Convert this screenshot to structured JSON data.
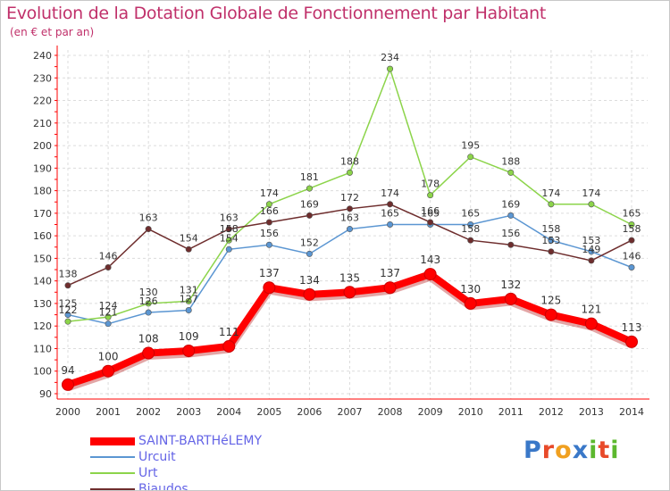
{
  "header": {
    "title": "Evolution de la Dotation Globale de Fonctionnement par Habitant",
    "subtitle": "(en € et par an)"
  },
  "logo": {
    "text": "Proxiti"
  },
  "chart_data": {
    "type": "line",
    "x": [
      2000,
      2001,
      2002,
      2003,
      2004,
      2005,
      2006,
      2007,
      2008,
      2009,
      2010,
      2011,
      2012,
      2013,
      2014
    ],
    "ylim": [
      90,
      240
    ],
    "yticks": [
      90,
      100,
      110,
      120,
      130,
      140,
      150,
      160,
      170,
      180,
      190,
      200,
      210,
      220,
      230,
      240
    ],
    "grid": true,
    "legend": "bottom-left",
    "series": [
      {
        "name": "SAINT-BARTHéLEMY",
        "color": "#ff0000",
        "emphasis": true,
        "values": [
          94,
          100,
          108,
          109,
          111,
          137,
          134,
          135,
          137,
          143,
          130,
          132,
          125,
          121,
          113
        ]
      },
      {
        "name": "Urcuit",
        "color": "#5b96d2",
        "values": [
          125,
          121,
          126,
          127,
          154,
          156,
          152,
          163,
          165,
          165,
          165,
          169,
          158,
          153,
          146
        ]
      },
      {
        "name": "Urt",
        "color": "#8cd44a",
        "values": [
          122,
          124,
          130,
          131,
          158,
          174,
          181,
          188,
          234,
          178,
          195,
          188,
          174,
          174,
          165
        ]
      },
      {
        "name": "Biaudos",
        "color": "#6e2d2d",
        "values": [
          138,
          146,
          163,
          154,
          163,
          166,
          169,
          172,
          174,
          166,
          158,
          156,
          153,
          149,
          158
        ]
      }
    ]
  }
}
